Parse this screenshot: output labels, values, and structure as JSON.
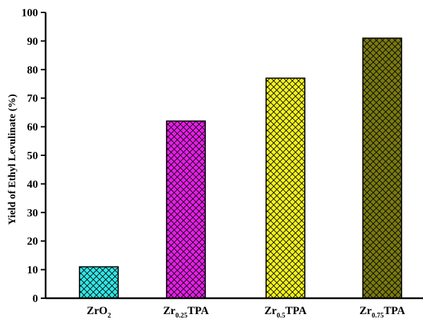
{
  "chart_data": {
    "type": "bar",
    "title": "",
    "xlabel": "",
    "ylabel": "Yield of Ethyl Levulinate (%)",
    "ylim": [
      0,
      100
    ],
    "yticks": [
      0,
      10,
      20,
      30,
      40,
      50,
      60,
      70,
      80,
      90,
      100
    ],
    "grid": false,
    "legend": "none",
    "categories": [
      {
        "base": "ZrO",
        "sub": "2",
        "tail": ""
      },
      {
        "base": "Zr",
        "sub": "0.25",
        "tail": "TPA"
      },
      {
        "base": "Zr",
        "sub": "0.5",
        "tail": "TPA"
      },
      {
        "base": "Zr",
        "sub": "0.75",
        "tail": "TPA"
      }
    ],
    "values": [
      11,
      62,
      77,
      91
    ],
    "colors": [
      "#33e6e6",
      "#e61ee6",
      "#f2f21e",
      "#7a7a10"
    ],
    "pattern": "crosshatch"
  }
}
